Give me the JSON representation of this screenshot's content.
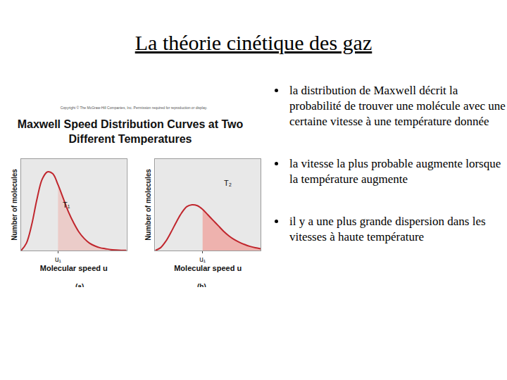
{
  "title": "La théorie cinétique des gaz",
  "bullets": [
    "la distribution de Maxwell décrit la probabilité de trouver une molécule avec une certaine vitesse à une température donnée",
    "la vitesse la plus probable augmente lorsque la température augmente",
    "il y a une plus grande dispersion dans les vitesses à haute température"
  ],
  "figure": {
    "copyright": "Copyright © The McGraw-Hill Companies, Inc. Permission required for reproduction or display.",
    "heading": "Maxwell Speed Distribution Curves at Two Different Temperatures"
  },
  "chart_data": [
    {
      "type": "line",
      "x": [
        0,
        0.5,
        1,
        1.5,
        2,
        2.5,
        3,
        3.5,
        4,
        4.5,
        5,
        5.5,
        6,
        6.5,
        7,
        7.5,
        8,
        8.5,
        9,
        9.5,
        10
      ],
      "values": [
        0,
        0.8,
        2.8,
        5.6,
        7.8,
        8.6,
        8.4,
        7.2,
        5.7,
        4.2,
        3.0,
        2.0,
        1.3,
        0.8,
        0.5,
        0.3,
        0.2,
        0.1,
        0.05,
        0.02,
        0.01
      ],
      "color": "#c0262d",
      "xlim": [
        0,
        10
      ],
      "ylim": [
        0,
        10
      ],
      "xticks": [
        {
          "value": 3.5,
          "label": "u₁"
        }
      ],
      "tick_labels": "x",
      "grid": false,
      "xlabel": "Molecular speed u",
      "ylabel": "Number of molecules",
      "annotations": [
        {
          "text": "T₁",
          "x": 4.3,
          "y": 5.0
        }
      ],
      "caption": "(a)"
    },
    {
      "type": "line",
      "x": [
        0,
        0.5,
        1,
        1.5,
        2,
        2.5,
        3,
        3.5,
        4,
        4.5,
        5,
        5.5,
        6,
        6.5,
        7,
        7.5,
        8,
        8.5,
        9,
        9.5,
        10
      ],
      "values": [
        0,
        0.3,
        1.0,
        2.0,
        3.1,
        4.1,
        4.8,
        5.0,
        4.9,
        4.5,
        3.9,
        3.3,
        2.7,
        2.1,
        1.6,
        1.2,
        0.9,
        0.65,
        0.45,
        0.3,
        0.2
      ],
      "color": "#c0262d",
      "xlim": [
        0,
        10
      ],
      "ylim": [
        0,
        10
      ],
      "xticks": [
        {
          "value": 4.5,
          "label": "u₁"
        }
      ],
      "tick_labels": "x",
      "grid": false,
      "xlabel": "Molecular speed u",
      "ylabel": "Number of molecules",
      "annotations": [
        {
          "text": "T₂",
          "x": 6.9,
          "y": 7.4
        }
      ],
      "caption": "(b)"
    }
  ]
}
